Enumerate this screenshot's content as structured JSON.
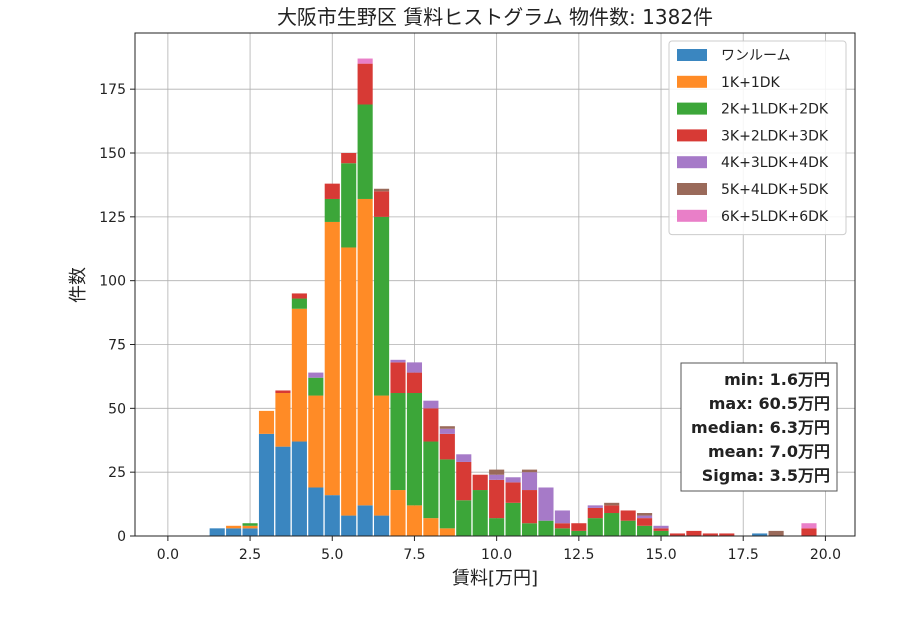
{
  "chart_data": {
    "type": "bar",
    "stacked": true,
    "title": "大阪市生野区 賃料ヒストグラム  物件数: 1382件",
    "xlabel": "賃料[万円]",
    "ylabel": "件数",
    "xlim": [
      -1.0,
      20.9
    ],
    "ylim": [
      0,
      197
    ],
    "xticks": [
      "0.0",
      "2.5",
      "5.0",
      "7.5",
      "10.0",
      "12.5",
      "15.0",
      "17.5",
      "20.0"
    ],
    "yticks": [
      "0",
      "25",
      "50",
      "75",
      "100",
      "125",
      "150",
      "175"
    ],
    "grid": true,
    "legend_position": "top-right",
    "bin_width": 0.5,
    "bins": [
      1.5,
      2.0,
      2.5,
      3.0,
      3.5,
      4.0,
      4.5,
      5.0,
      5.5,
      6.0,
      6.5,
      7.0,
      7.5,
      8.0,
      8.5,
      9.0,
      9.5,
      10.0,
      10.5,
      11.0,
      11.5,
      12.0,
      12.5,
      13.0,
      13.5,
      14.0,
      14.5,
      15.0,
      15.5,
      16.0,
      16.5,
      17.0,
      17.5,
      18.0,
      18.5,
      19.0,
      19.5
    ],
    "series": [
      {
        "name": "ワンルーム",
        "color": "#3a86c0",
        "values": [
          3,
          3,
          3,
          40,
          35,
          37,
          19,
          16,
          8,
          12,
          8,
          0,
          0,
          0,
          0,
          0,
          0,
          0,
          0,
          0,
          0,
          0,
          0,
          0,
          0,
          0,
          0,
          0,
          0,
          0,
          0,
          0,
          0,
          1,
          0,
          0,
          0
        ]
      },
      {
        "name": "1K+1DK",
        "color": "#ff8b26",
        "values": [
          0,
          1,
          1,
          9,
          21,
          52,
          36,
          107,
          105,
          120,
          47,
          18,
          12,
          7,
          3,
          0,
          0,
          0,
          0,
          0,
          0,
          0,
          0,
          0,
          0,
          0,
          0,
          0,
          0,
          0,
          0,
          0,
          0,
          0,
          0,
          0,
          0
        ]
      },
      {
        "name": "2K+1LDK+2DK",
        "color": "#3ca639",
        "values": [
          0,
          0,
          1,
          0,
          0,
          4,
          7,
          9,
          33,
          37,
          70,
          38,
          44,
          30,
          27,
          14,
          18,
          7,
          13,
          5,
          6,
          3,
          2,
          7,
          9,
          6,
          4,
          2,
          0,
          0,
          0,
          0,
          0,
          0,
          0,
          0,
          0
        ]
      },
      {
        "name": "3K+2LDK+3DK",
        "color": "#d73a35",
        "values": [
          0,
          0,
          0,
          0,
          1,
          2,
          0,
          6,
          4,
          16,
          10,
          12,
          8,
          13,
          10,
          15,
          6,
          15,
          8,
          13,
          0,
          2,
          3,
          4,
          3,
          4,
          3,
          1,
          1,
          2,
          1,
          1,
          0,
          0,
          0,
          0,
          3
        ]
      },
      {
        "name": "4K+3LDK+4DK",
        "color": "#a67ac8",
        "values": [
          0,
          0,
          0,
          0,
          0,
          0,
          2,
          0,
          0,
          0,
          0,
          1,
          4,
          3,
          2,
          3,
          0,
          2,
          2,
          7,
          13,
          5,
          0,
          1,
          0,
          0,
          1,
          1,
          0,
          0,
          0,
          0,
          0,
          0,
          0,
          0,
          0
        ]
      },
      {
        "name": "5K+4LDK+5DK",
        "color": "#9a6a5a",
        "values": [
          0,
          0,
          0,
          0,
          0,
          0,
          0,
          0,
          0,
          0,
          1,
          0,
          0,
          0,
          1,
          0,
          0,
          2,
          0,
          1,
          0,
          0,
          0,
          0,
          1,
          0,
          1,
          0,
          0,
          0,
          0,
          0,
          0,
          0,
          2,
          0,
          0
        ]
      },
      {
        "name": "6K+5LDK+6DK",
        "color": "#e97fc8",
        "values": [
          0,
          0,
          0,
          0,
          0,
          0,
          0,
          0,
          0,
          2,
          0,
          0,
          0,
          0,
          0,
          0,
          0,
          0,
          0,
          0,
          0,
          0,
          0,
          0,
          0,
          0,
          0,
          0,
          0,
          0,
          0,
          0,
          0,
          0,
          0,
          0,
          2
        ]
      }
    ],
    "stats": [
      "min: 1.6万円",
      "max: 60.5万円",
      "median: 6.3万円",
      "mean: 7.0万円",
      "Sigma: 3.5万円"
    ]
  }
}
